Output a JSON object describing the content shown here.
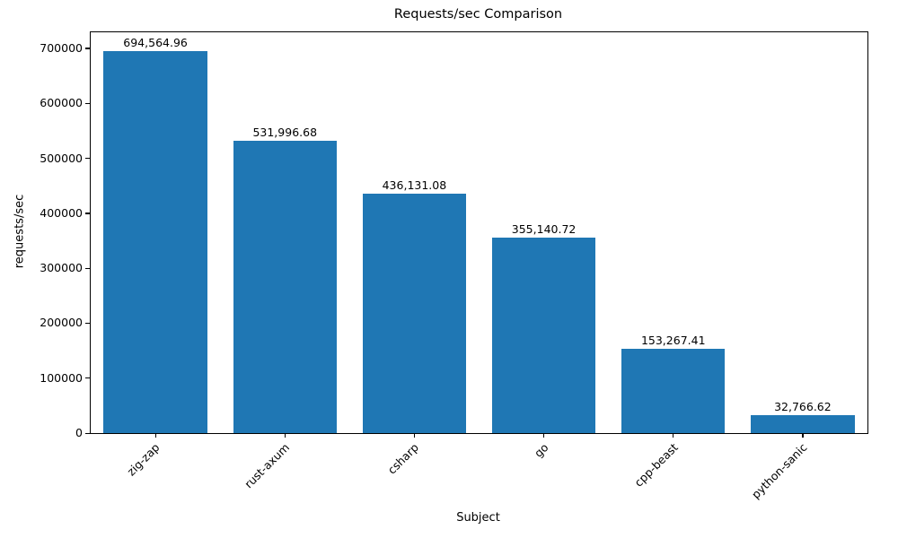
{
  "chart_data": {
    "type": "bar",
    "title": "Requests/sec Comparison",
    "xlabel": "Subject",
    "ylabel": "requests/sec",
    "categories": [
      "zig-zap",
      "rust-axum",
      "csharp",
      "go",
      "cpp-beast",
      "python-sanic"
    ],
    "values": [
      694564.96,
      531996.68,
      436131.08,
      355140.72,
      153267.41,
      32766.62
    ],
    "value_labels": [
      "694,564.96",
      "531,996.68",
      "436,131.08",
      "355,140.72",
      "153,267.41",
      "32,766.62"
    ],
    "ylim": [
      0,
      729300
    ],
    "yticks": [
      0,
      100000,
      200000,
      300000,
      400000,
      500000,
      600000,
      700000
    ],
    "ytick_labels": [
      "0",
      "100000",
      "200000",
      "300000",
      "400000",
      "500000",
      "600000",
      "700000"
    ],
    "bar_color": "#1f77b4",
    "grid": false,
    "legend": null
  }
}
